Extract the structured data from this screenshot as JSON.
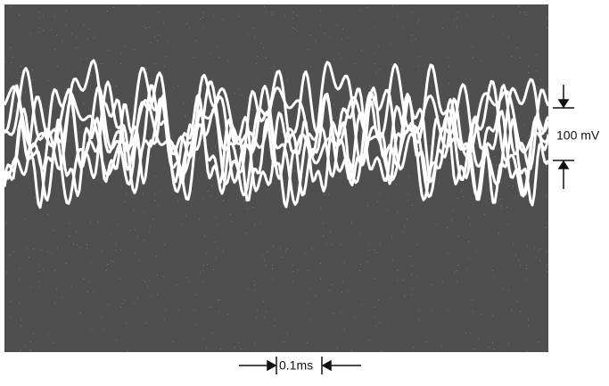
{
  "scale": {
    "voltage": "100 mV",
    "time": "0.1ms"
  }
}
